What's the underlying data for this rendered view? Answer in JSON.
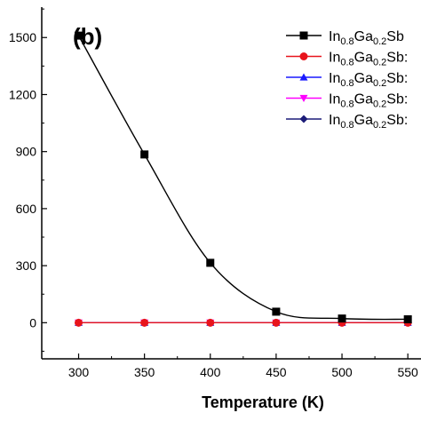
{
  "chart_data": {
    "type": "line",
    "panel_label": "(b)",
    "xlabel": "Temperature (K)",
    "ylabel": "",
    "xlim": [
      272,
      560
    ],
    "ylim": [
      -190,
      1660
    ],
    "x_ticks": [
      "300",
      "350",
      "400",
      "450",
      "500",
      "550"
    ],
    "y_ticks": [
      "0",
      "300",
      "600",
      "900",
      "1200",
      "1500"
    ],
    "x": [
      300,
      350,
      400,
      450,
      500,
      550
    ],
    "series": [
      {
        "legend_parts": [
          "In",
          "0.8",
          "Ga",
          "0.2",
          "Sb"
        ],
        "values": [
          1510,
          885,
          315,
          58,
          22,
          18
        ],
        "color": "#000000",
        "marker": "square",
        "smooth": true
      },
      {
        "legend_parts": [
          "In",
          "0.8",
          "Ga",
          "0.2",
          "Sb:"
        ],
        "values": [
          0,
          0,
          0,
          0,
          0,
          0
        ],
        "color": "#e8141c",
        "marker": "circle",
        "smooth": false
      },
      {
        "legend_parts": [
          "In",
          "0.8",
          "Ga",
          "0.2",
          "Sb:"
        ],
        "values": [
          0,
          0,
          0,
          0,
          0,
          0
        ],
        "color": "#1a1aff",
        "marker": "triangle-up",
        "smooth": false
      },
      {
        "legend_parts": [
          "In",
          "0.8",
          "Ga",
          "0.2",
          "Sb:"
        ],
        "values": [
          0,
          0,
          0,
          0,
          0,
          0
        ],
        "color": "#ff00ff",
        "marker": "triangle-down",
        "smooth": false
      },
      {
        "legend_parts": [
          "In",
          "0.8",
          "Ga",
          "0.2",
          "Sb:"
        ],
        "values": [
          0,
          0,
          0,
          0,
          0,
          0
        ],
        "color": "#1c1c78",
        "marker": "diamond",
        "smooth": false
      }
    ],
    "legend_position": "top-right",
    "grid": false
  }
}
